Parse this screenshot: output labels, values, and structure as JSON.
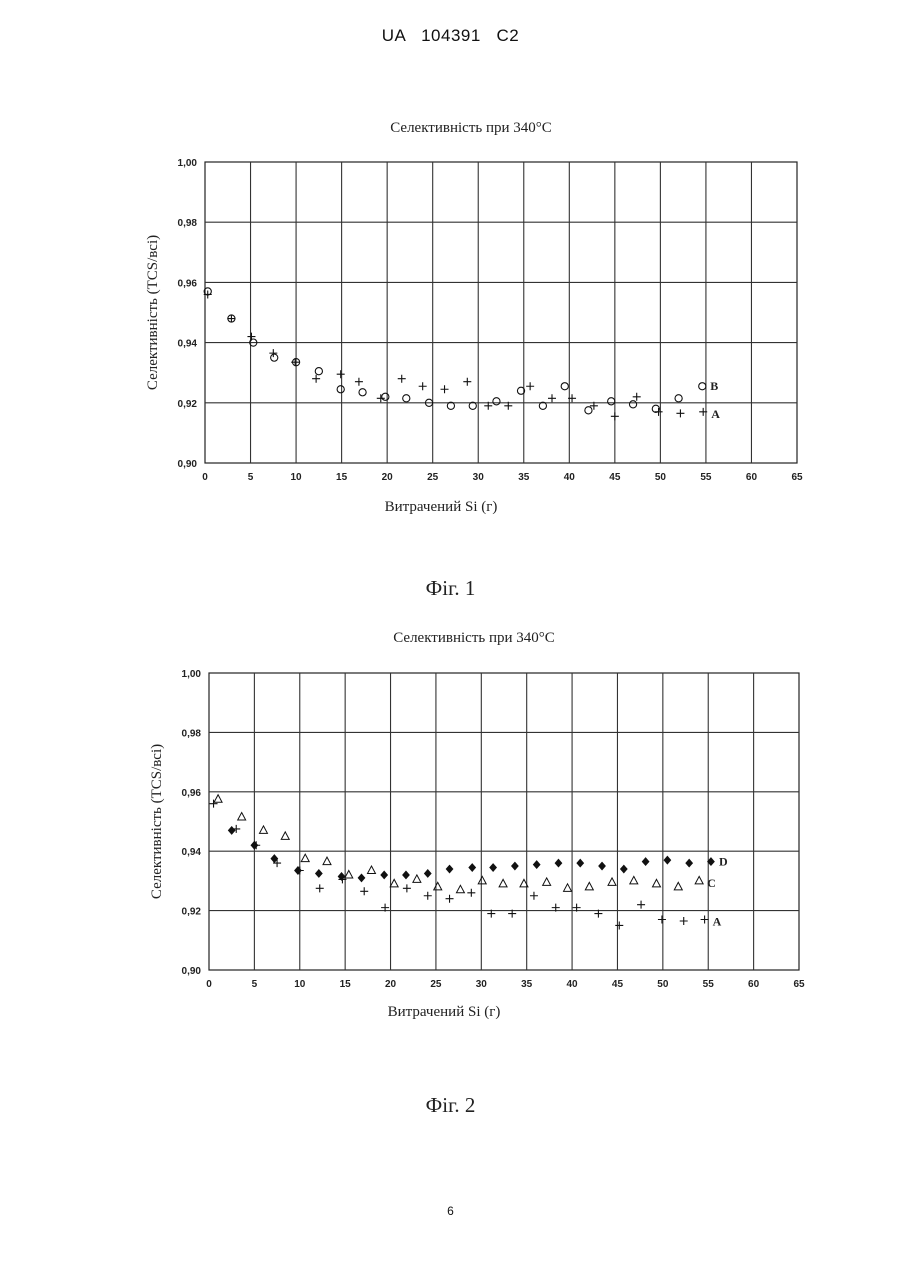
{
  "page": {
    "header": "UA   104391   C2",
    "page_number": "6",
    "figure_1_caption": "Фіг. 1",
    "figure_2_caption": "Фіг. 2"
  },
  "chart_data": [
    {
      "type": "scatter",
      "title": "Селективність при 340°C",
      "xlabel": "Витрачений Si (г)",
      "ylabel": "Селективність (TCS/всі)",
      "xlim": [
        0,
        65
      ],
      "ylim": [
        0.9,
        1.0
      ],
      "xticks": [
        "0",
        "5",
        "10",
        "15",
        "20",
        "25",
        "30",
        "35",
        "40",
        "45",
        "50",
        "55",
        "60",
        "65"
      ],
      "yticks": [
        "0,90",
        "0,92",
        "0,94",
        "0,96",
        "0,98",
        "1,00"
      ],
      "grid": true,
      "series": [
        {
          "name": "A",
          "marker": "plus",
          "x": [
            0.3,
            2.9,
            5.1,
            7.5,
            9.9,
            12.2,
            14.9,
            16.9,
            19.3,
            21.6,
            23.9,
            26.3,
            28.8,
            31.1,
            33.3,
            35.7,
            38.1,
            40.3,
            42.7,
            45.0,
            47.4,
            49.8,
            52.2,
            54.7
          ],
          "y": [
            0.956,
            0.948,
            0.942,
            0.9365,
            0.9335,
            0.928,
            0.9295,
            0.927,
            0.9215,
            0.928,
            0.9255,
            0.9245,
            0.927,
            0.919,
            0.919,
            0.9255,
            0.9215,
            0.9215,
            0.919,
            0.9155,
            0.922,
            0.917,
            0.9165,
            0.917
          ]
        },
        {
          "name": "B",
          "marker": "circle",
          "x": [
            0.3,
            2.9,
            5.3,
            7.6,
            10.0,
            12.5,
            14.9,
            17.3,
            19.8,
            22.1,
            24.6,
            27.0,
            29.4,
            32.0,
            34.7,
            37.1,
            39.5,
            42.1,
            44.6,
            47.0,
            49.5,
            52.0,
            54.6
          ],
          "y": [
            0.957,
            0.948,
            0.94,
            0.935,
            0.9335,
            0.9305,
            0.9245,
            0.9235,
            0.922,
            0.9215,
            0.92,
            0.919,
            0.919,
            0.9205,
            0.924,
            0.919,
            0.9255,
            0.9175,
            0.9205,
            0.9195,
            0.918,
            0.9215,
            0.9255
          ]
        }
      ],
      "annotations": [
        "B",
        "A"
      ]
    },
    {
      "type": "scatter",
      "title": "Селективність при 340°C",
      "xlabel": "Витрачений Si (г)",
      "ylabel": "Селективність (TCS/всі)",
      "xlim": [
        0,
        65
      ],
      "ylim": [
        0.9,
        1.0
      ],
      "xticks": [
        "0",
        "5",
        "10",
        "15",
        "20",
        "25",
        "30",
        "35",
        "40",
        "45",
        "50",
        "55",
        "60",
        "65"
      ],
      "yticks": [
        "0,90",
        "0,92",
        "0,94",
        "0,96",
        "0,98",
        "1,00"
      ],
      "grid": true,
      "series": [
        {
          "name": "A",
          "marker": "plus",
          "x": [
            0.5,
            3.0,
            5.2,
            7.5,
            10.0,
            12.2,
            14.7,
            17.1,
            19.4,
            21.8,
            24.1,
            26.5,
            28.9,
            31.1,
            33.4,
            35.8,
            38.2,
            40.5,
            42.9,
            45.2,
            47.6,
            49.9,
            52.3,
            54.6
          ],
          "y": [
            0.956,
            0.9475,
            0.942,
            0.936,
            0.9335,
            0.9275,
            0.9305,
            0.9265,
            0.921,
            0.9275,
            0.925,
            0.924,
            0.926,
            0.919,
            0.919,
            0.925,
            0.921,
            0.921,
            0.919,
            0.915,
            0.922,
            0.917,
            0.9165,
            0.917
          ]
        },
        {
          "name": "C",
          "marker": "triangle",
          "x": [
            1.0,
            3.6,
            6.0,
            8.4,
            10.6,
            13.0,
            15.4,
            17.9,
            20.4,
            22.9,
            25.2,
            27.7,
            30.1,
            32.4,
            34.7,
            37.2,
            39.5,
            41.9,
            44.4,
            46.8,
            49.3,
            51.7,
            54.0
          ],
          "y": [
            0.9575,
            0.9515,
            0.947,
            0.945,
            0.9375,
            0.9365,
            0.932,
            0.9335,
            0.929,
            0.9305,
            0.928,
            0.927,
            0.93,
            0.929,
            0.929,
            0.9295,
            0.9275,
            0.928,
            0.9295,
            0.93,
            0.929,
            0.928,
            0.93
          ]
        },
        {
          "name": "D",
          "marker": "diamond",
          "x": [
            2.5,
            5.0,
            7.2,
            9.8,
            12.1,
            14.6,
            16.8,
            19.3,
            21.7,
            24.1,
            26.5,
            29.0,
            31.3,
            33.7,
            36.1,
            38.5,
            40.9,
            43.3,
            45.7,
            48.1,
            50.5,
            52.9,
            55.3
          ],
          "y": [
            0.947,
            0.942,
            0.9375,
            0.9335,
            0.9325,
            0.9315,
            0.931,
            0.932,
            0.932,
            0.9325,
            0.934,
            0.9345,
            0.9345,
            0.935,
            0.9355,
            0.936,
            0.936,
            0.935,
            0.934,
            0.9365,
            0.937,
            0.936,
            0.9365
          ]
        }
      ],
      "annotations": [
        "D",
        "C",
        "A"
      ]
    }
  ]
}
